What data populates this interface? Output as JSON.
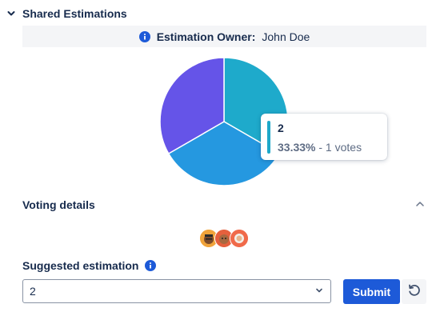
{
  "section": {
    "title": "Shared Estimations",
    "icon": "chevron-down-icon"
  },
  "owner": {
    "label": "Estimation Owner:",
    "name": "John Doe",
    "icon": "info-icon"
  },
  "chart_data": {
    "type": "pie",
    "slices": [
      {
        "label": "2",
        "value": 33.33,
        "votes": 1,
        "color": "#1eaacb"
      },
      {
        "label": "",
        "value": 33.33,
        "votes": 1,
        "color": "#2598e0"
      },
      {
        "label": "",
        "value": 33.34,
        "votes": 1,
        "color": "#6554e8"
      }
    ]
  },
  "tooltip": {
    "title": "2",
    "percent": "33.33%",
    "votes_text": " - 1 votes"
  },
  "voting": {
    "title": "Voting details",
    "collapse_icon": "chevron-up-icon"
  },
  "avatars": [
    {
      "name": "voter-avatar-1",
      "color": "#f0a33a"
    },
    {
      "name": "voter-avatar-2",
      "color": "#e5603d"
    },
    {
      "name": "voter-avatar-3",
      "color": "#f06a4a"
    }
  ],
  "suggestion": {
    "label": "Suggested estimation",
    "selected": "2",
    "submit_label": "Submit",
    "reset_icon": "reset-icon"
  },
  "colors": {
    "accent": "#1d5ad8",
    "info": "#1d5ad8"
  }
}
